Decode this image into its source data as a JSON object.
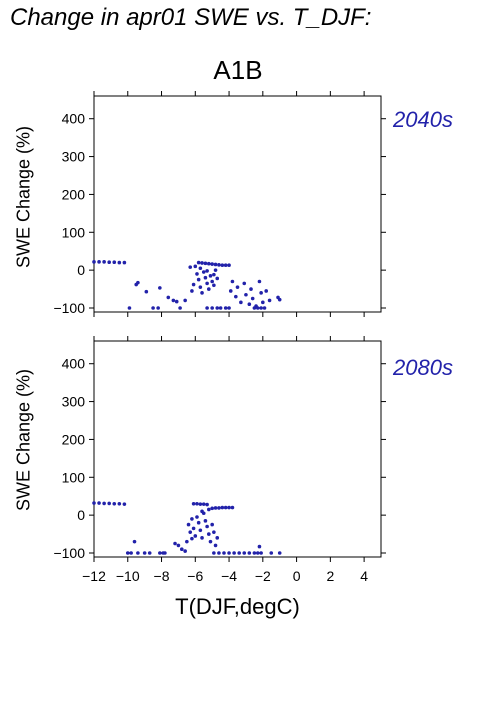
{
  "title": "Change in apr01 SWE vs. T_DJF:",
  "scenario": "A1B",
  "xlabel": "T(DJF,degC)",
  "point_color": "#2222aa",
  "chart_data": [
    {
      "type": "scatter",
      "panel_label": "2040s",
      "ylabel": "SWE Change (%)",
      "xlim": [
        -12,
        5
      ],
      "ylim": [
        -100,
        460
      ],
      "xticks": [
        -12,
        -10,
        -8,
        -6,
        -4,
        -2,
        0,
        2,
        4
      ],
      "yticks": [
        -100,
        0,
        100,
        200,
        300,
        400
      ],
      "show_x_tick_labels": false,
      "points": [
        [
          -12,
          22
        ],
        [
          -11.7,
          22
        ],
        [
          -11.4,
          22
        ],
        [
          -11.1,
          21
        ],
        [
          -10.8,
          21
        ],
        [
          -10.5,
          20
        ],
        [
          -10.2,
          20
        ],
        [
          -9.9,
          -100
        ],
        [
          -9.5,
          -38
        ],
        [
          -9.4,
          -33
        ],
        [
          -8.9,
          -57
        ],
        [
          -8.5,
          -100
        ],
        [
          -8.2,
          -100
        ],
        [
          -8.1,
          -47
        ],
        [
          -7.6,
          -72
        ],
        [
          -7.3,
          -80
        ],
        [
          -7.1,
          -83
        ],
        [
          -6.9,
          -100
        ],
        [
          -6.6,
          -80
        ],
        [
          -6.3,
          8
        ],
        [
          -6.0,
          10
        ],
        [
          -5.8,
          20
        ],
        [
          -5.6,
          19
        ],
        [
          -5.4,
          18
        ],
        [
          -5.2,
          17
        ],
        [
          -5.0,
          16
        ],
        [
          -4.8,
          15
        ],
        [
          -4.6,
          14
        ],
        [
          -4.4,
          13
        ],
        [
          -4.2,
          13
        ],
        [
          -4.0,
          13
        ],
        [
          -5.9,
          -10
        ],
        [
          -5.8,
          -25
        ],
        [
          -5.7,
          -45
        ],
        [
          -5.6,
          -60
        ],
        [
          -5.5,
          -5
        ],
        [
          -5.4,
          -20
        ],
        [
          -5.3,
          -35
        ],
        [
          -5.2,
          -50
        ],
        [
          -5.1,
          -15
        ],
        [
          -5.0,
          -30
        ],
        [
          -4.9,
          -40
        ],
        [
          -4.8,
          0
        ],
        [
          -4.7,
          -22
        ],
        [
          -6.1,
          -38
        ],
        [
          -6.2,
          -55
        ],
        [
          -5.7,
          5
        ],
        [
          -5.3,
          -2
        ],
        [
          -4.9,
          -12
        ],
        [
          -5.3,
          -100
        ],
        [
          -5.0,
          -100
        ],
        [
          -4.7,
          -100
        ],
        [
          -4.5,
          -100
        ],
        [
          -4.2,
          -100
        ],
        [
          -4.0,
          -100
        ],
        [
          -3.9,
          -55
        ],
        [
          -3.8,
          -30
        ],
        [
          -3.6,
          -70
        ],
        [
          -3.5,
          -45
        ],
        [
          -3.3,
          -85
        ],
        [
          -3.1,
          -35
        ],
        [
          -3.0,
          -65
        ],
        [
          -2.8,
          -90
        ],
        [
          -2.7,
          -50
        ],
        [
          -2.6,
          -75
        ],
        [
          -2.5,
          -100
        ],
        [
          -2.4,
          -95
        ],
        [
          -2.2,
          -30
        ],
        [
          -2.1,
          -60
        ],
        [
          -2.0,
          -85
        ],
        [
          -1.9,
          -100
        ],
        [
          -1.8,
          -55
        ],
        [
          -1.6,
          -80
        ],
        [
          -2.3,
          -100
        ],
        [
          -2.1,
          -100
        ],
        [
          -1.1,
          -72
        ],
        [
          -1.0,
          -78
        ]
      ]
    },
    {
      "type": "scatter",
      "panel_label": "2080s",
      "ylabel": "SWE Change (%)",
      "xlim": [
        -12,
        5
      ],
      "ylim": [
        -100,
        460
      ],
      "xticks": [
        -12,
        -10,
        -8,
        -6,
        -4,
        -2,
        0,
        2,
        4
      ],
      "yticks": [
        -100,
        0,
        100,
        200,
        300,
        400
      ],
      "show_x_tick_labels": true,
      "points": [
        [
          -12,
          32
        ],
        [
          -11.7,
          32
        ],
        [
          -11.4,
          31
        ],
        [
          -11.1,
          31
        ],
        [
          -10.8,
          30
        ],
        [
          -10.5,
          30
        ],
        [
          -10.2,
          29
        ],
        [
          -10.0,
          -100
        ],
        [
          -9.8,
          -100
        ],
        [
          -9.6,
          -70
        ],
        [
          -9.4,
          -100
        ],
        [
          -9.0,
          -100
        ],
        [
          -8.7,
          -100
        ],
        [
          -8.1,
          -100
        ],
        [
          -7.9,
          -100
        ],
        [
          -7.8,
          -100
        ],
        [
          -7.2,
          -75
        ],
        [
          -7.0,
          -80
        ],
        [
          -6.8,
          -90
        ],
        [
          -6.6,
          -95
        ],
        [
          -6.5,
          -70
        ],
        [
          -6.1,
          30
        ],
        [
          -5.9,
          30
        ],
        [
          -5.7,
          29
        ],
        [
          -5.5,
          29
        ],
        [
          -5.3,
          28
        ],
        [
          -5.2,
          15
        ],
        [
          -5.0,
          18
        ],
        [
          -4.8,
          19
        ],
        [
          -4.6,
          19
        ],
        [
          -4.4,
          20
        ],
        [
          -4.2,
          20
        ],
        [
          -4.0,
          20
        ],
        [
          -3.8,
          20
        ],
        [
          -6.4,
          -25
        ],
        [
          -6.3,
          -45
        ],
        [
          -6.2,
          -10
        ],
        [
          -6.1,
          -35
        ],
        [
          -6.0,
          -55
        ],
        [
          -5.9,
          -5
        ],
        [
          -5.8,
          -20
        ],
        [
          -5.7,
          -40
        ],
        [
          -5.6,
          -60
        ],
        [
          -5.5,
          5
        ],
        [
          -5.4,
          -15
        ],
        [
          -5.3,
          -30
        ],
        [
          -5.2,
          -50
        ],
        [
          -5.1,
          -70
        ],
        [
          -5.0,
          -25
        ],
        [
          -4.9,
          -45
        ],
        [
          -4.8,
          -80
        ],
        [
          -4.7,
          -60
        ],
        [
          -6.2,
          -62
        ],
        [
          -5.6,
          10
        ],
        [
          -4.9,
          -100
        ],
        [
          -4.6,
          -100
        ],
        [
          -4.3,
          -100
        ],
        [
          -4.0,
          -100
        ],
        [
          -3.7,
          -100
        ],
        [
          -3.4,
          -100
        ],
        [
          -3.1,
          -100
        ],
        [
          -2.8,
          -100
        ],
        [
          -2.5,
          -100
        ],
        [
          -2.3,
          -100
        ],
        [
          -2.1,
          -100
        ],
        [
          -2.2,
          -83
        ],
        [
          -1.5,
          -100
        ],
        [
          -1.0,
          -100
        ]
      ]
    }
  ]
}
